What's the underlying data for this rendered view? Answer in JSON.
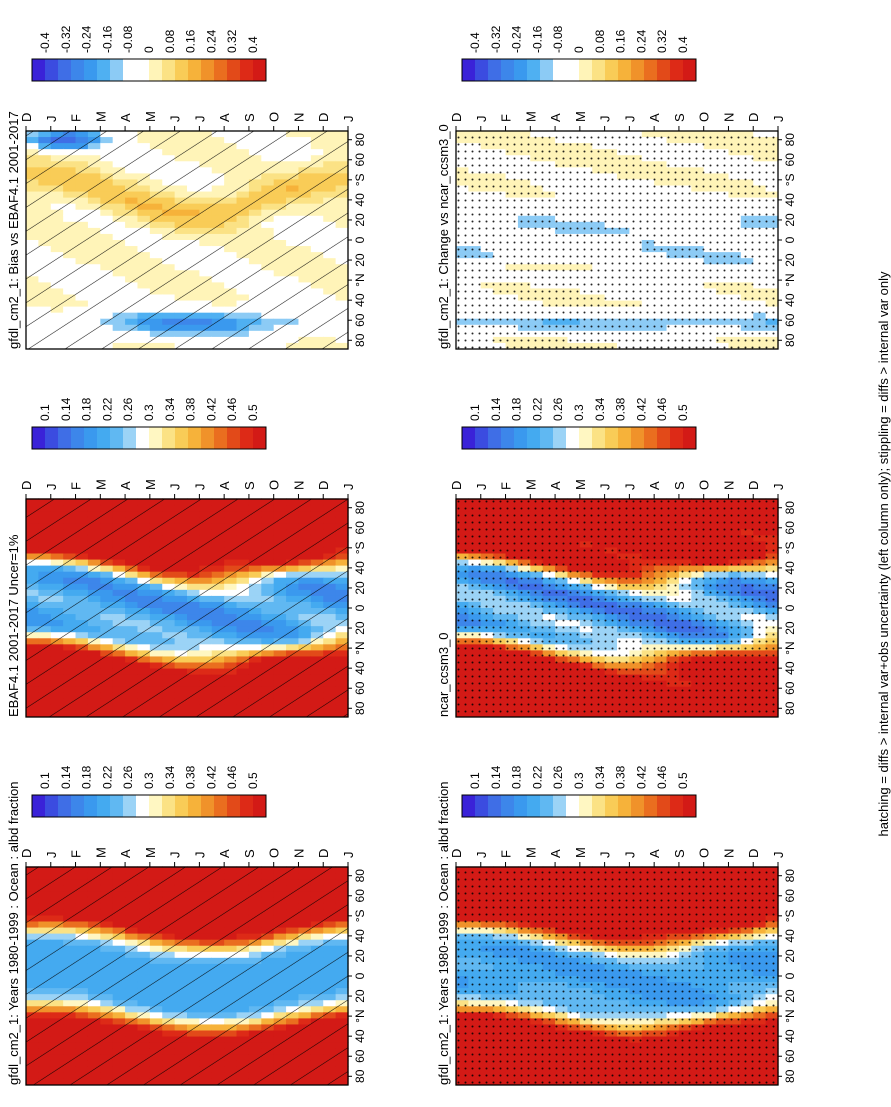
{
  "figure": {
    "footer": "hatching = diffs > internal var+obs uncertainty (left column only); stippling = diffs > internal var only",
    "colors": {
      "abs": [
        "#3a22d8",
        "#3b4ce0",
        "#3f6ee6",
        "#3d86ea",
        "#3a99ee",
        "#44aaf0",
        "#60b8f2",
        "#9bd3f6",
        "#ffffff",
        "#fff7c2",
        "#fbe285",
        "#f9cc57",
        "#f6b23a",
        "#f0922a",
        "#ea6e1f",
        "#e24a19",
        "#dd2a17",
        "#d31a16"
      ],
      "diff": [
        "#3a22d8",
        "#3b4ce0",
        "#3f6ee6",
        "#3d86ea",
        "#3a99ee",
        "#4fb0f2",
        "#8ccbf5",
        "#ffffff",
        "#ffffff",
        "#fff4b8",
        "#fbe285",
        "#f9cc57",
        "#f6b23a",
        "#f0922a",
        "#ea6e1f",
        "#e24a19",
        "#dd2a17",
        "#d31a16"
      ]
    }
  },
  "chart_data": [
    {
      "id": "p1",
      "type": "heatmap",
      "title": "gfdl_cm2_1: Years 1980-1999 : Ocean : albd fraction",
      "x_ticks": [
        "D",
        "J",
        "F",
        "M",
        "A",
        "M",
        "J",
        "J",
        "A",
        "S",
        "O",
        "N",
        "D",
        "J"
      ],
      "y_ticks": [
        "80",
        "60",
        "40",
        "°N",
        "20",
        "0",
        "20",
        "40",
        "°S",
        "60",
        "80"
      ],
      "z_kind": "abs",
      "overlay": "hatching",
      "colorbar_labels": [
        "0.1",
        "0.14",
        "0.18",
        "0.22",
        "0.26",
        "0.3",
        "0.34",
        "0.38",
        "0.42",
        "0.46",
        "0.5"
      ],
      "zlim": [
        0.1,
        0.5
      ]
    },
    {
      "id": "p2",
      "type": "heatmap",
      "title": "gfdl_cm2_1: Years 1980-1999 : Ocean : albd fraction",
      "x_ticks": [
        "D",
        "J",
        "F",
        "M",
        "A",
        "M",
        "J",
        "J",
        "A",
        "S",
        "O",
        "N",
        "D",
        "J"
      ],
      "y_ticks": [
        "80",
        "60",
        "40",
        "°N",
        "20",
        "0",
        "20",
        "40",
        "°S",
        "60",
        "80"
      ],
      "z_kind": "abs",
      "overlay": "stippling",
      "colorbar_labels": [
        "0.1",
        "0.14",
        "0.18",
        "0.22",
        "0.26",
        "0.3",
        "0.34",
        "0.38",
        "0.42",
        "0.46",
        "0.5"
      ],
      "zlim": [
        0.1,
        0.5
      ]
    },
    {
      "id": "p3",
      "type": "heatmap",
      "title": "EBAF4.1 2001-2017 Uncer=1%",
      "x_ticks": [
        "D",
        "J",
        "F",
        "M",
        "A",
        "M",
        "J",
        "J",
        "A",
        "S",
        "O",
        "N",
        "D",
        "J"
      ],
      "y_ticks": [
        "80",
        "60",
        "40",
        "°N",
        "20",
        "0",
        "20",
        "40",
        "°S",
        "60",
        "80"
      ],
      "z_kind": "abs",
      "overlay": "hatching",
      "colorbar_labels": [
        "0.1",
        "0.14",
        "0.18",
        "0.22",
        "0.26",
        "0.3",
        "0.34",
        "0.38",
        "0.42",
        "0.46",
        "0.5"
      ],
      "zlim": [
        0.1,
        0.5
      ]
    },
    {
      "id": "p4",
      "type": "heatmap",
      "title": "ncar_ccsm3_0",
      "x_ticks": [
        "D",
        "J",
        "F",
        "M",
        "A",
        "M",
        "J",
        "J",
        "A",
        "S",
        "O",
        "N",
        "D",
        "J"
      ],
      "y_ticks": [
        "80",
        "60",
        "40",
        "°N",
        "20",
        "0",
        "20",
        "40",
        "°S",
        "60",
        "80"
      ],
      "z_kind": "abs",
      "overlay": "stippling",
      "colorbar_labels": [
        "0.1",
        "0.14",
        "0.18",
        "0.22",
        "0.26",
        "0.3",
        "0.34",
        "0.38",
        "0.42",
        "0.46",
        "0.5"
      ],
      "zlim": [
        0.1,
        0.5
      ]
    },
    {
      "id": "p5",
      "type": "heatmap",
      "title": "gfdl_cm2_1: Bias vs EBAF4.1 2001-2017",
      "x_ticks": [
        "D",
        "J",
        "F",
        "M",
        "A",
        "M",
        "J",
        "J",
        "A",
        "S",
        "O",
        "N",
        "D",
        "J"
      ],
      "y_ticks": [
        "80",
        "60",
        "40",
        "°N",
        "20",
        "0",
        "20",
        "40",
        "°S",
        "60",
        "80"
      ],
      "z_kind": "diff",
      "overlay": "hatching",
      "colorbar_labels": [
        "-0.4",
        "-0.32",
        "-0.24",
        "-0.16",
        "-0.08",
        "0",
        "0.08",
        "0.16",
        "0.24",
        "0.32",
        "0.4"
      ],
      "zlim": [
        -0.4,
        0.4
      ]
    },
    {
      "id": "p6",
      "type": "heatmap",
      "title": "gfdl_cm2_1: Change vs ncar_ccsm3_0",
      "x_ticks": [
        "D",
        "J",
        "F",
        "M",
        "A",
        "M",
        "J",
        "J",
        "A",
        "S",
        "O",
        "N",
        "D",
        "J"
      ],
      "y_ticks": [
        "80",
        "60",
        "40",
        "°N",
        "20",
        "0",
        "20",
        "40",
        "°S",
        "60",
        "80"
      ],
      "z_kind": "diff",
      "overlay": "stippling",
      "colorbar_labels": [
        "-0.4",
        "-0.32",
        "-0.24",
        "-0.16",
        "-0.08",
        "0",
        "0.08",
        "0.16",
        "0.24",
        "0.32",
        "0.4"
      ],
      "zlim": [
        -0.4,
        0.4
      ]
    }
  ]
}
